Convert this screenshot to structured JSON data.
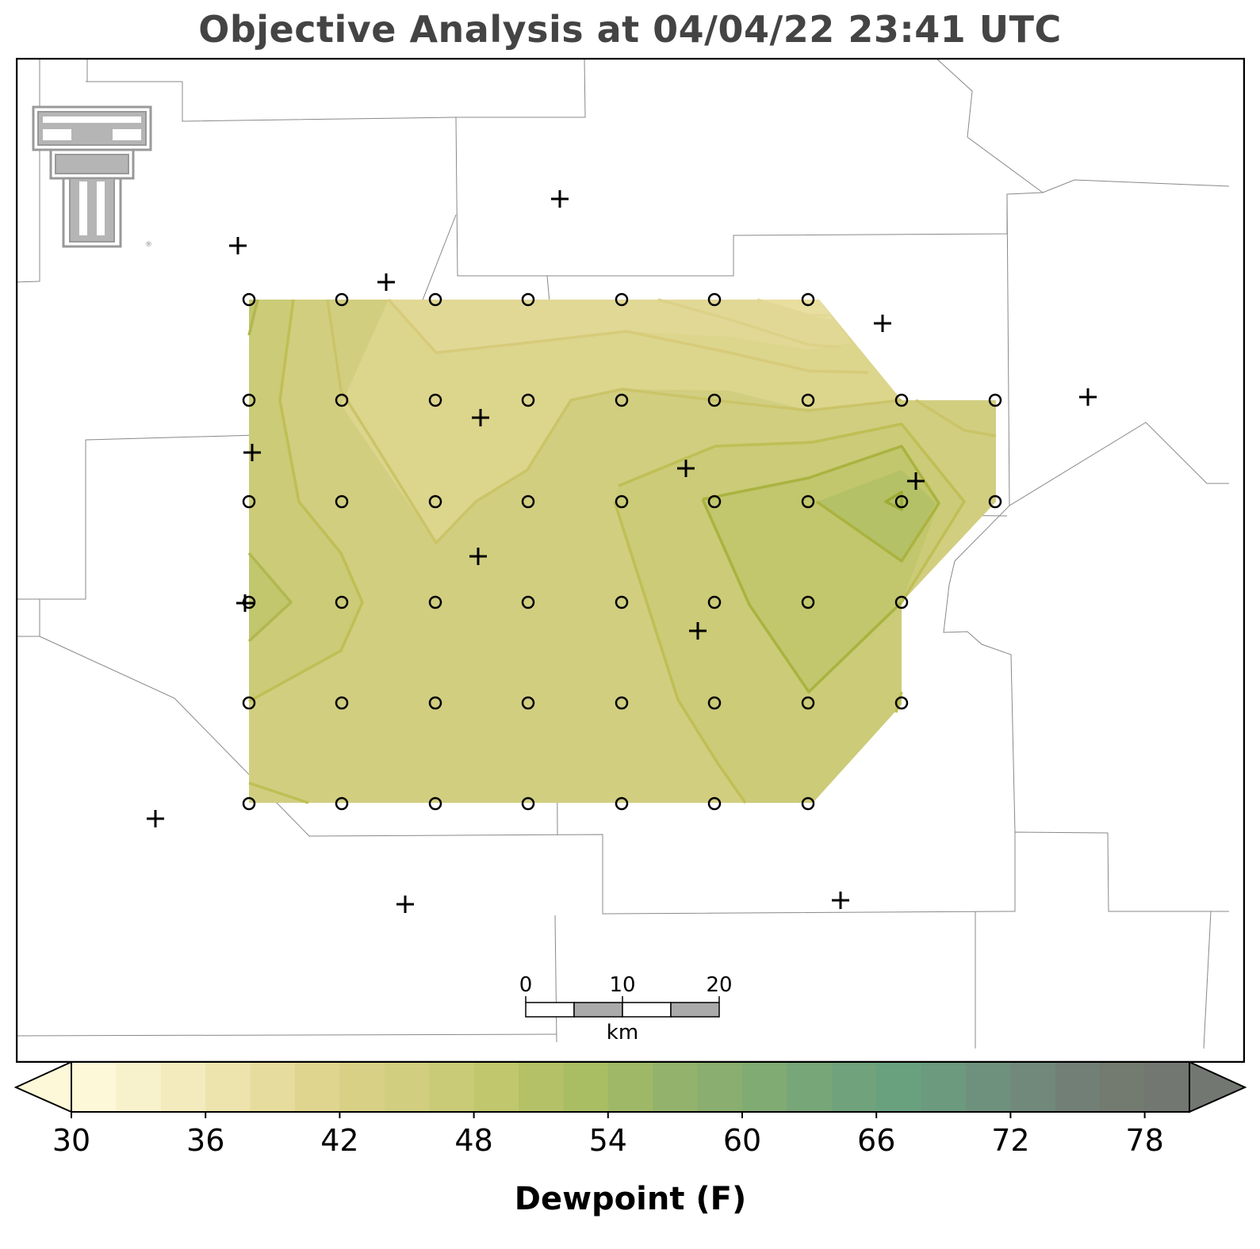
{
  "title": "Objective Analysis at 04/04/22 23:41 UTC",
  "colorbar": {
    "label": "Dewpoint (F)",
    "ticks": [
      "30",
      "36",
      "42",
      "48",
      "54",
      "60",
      "66",
      "72",
      "78"
    ],
    "colors": [
      "#fdf8d8",
      "#f8f2cc",
      "#f3ebbe",
      "#ede3ad",
      "#e6dc9d",
      "#dfd58f",
      "#d8d185",
      "#d1ce80",
      "#c9cb77",
      "#c0c76c",
      "#b4c166",
      "#a9bd63",
      "#9fb867",
      "#93b36c",
      "#89ae6f",
      "#80ab73",
      "#77a679",
      "#70a27c",
      "#69a17f",
      "#6b9a7e",
      "#6e917d",
      "#70897b",
      "#727f76",
      "#737a70",
      "#737772"
    ]
  },
  "scalebar": {
    "labels": [
      "0",
      "10",
      "20"
    ],
    "unit": "km"
  },
  "logo": "texas-tech-double-t-logo"
}
